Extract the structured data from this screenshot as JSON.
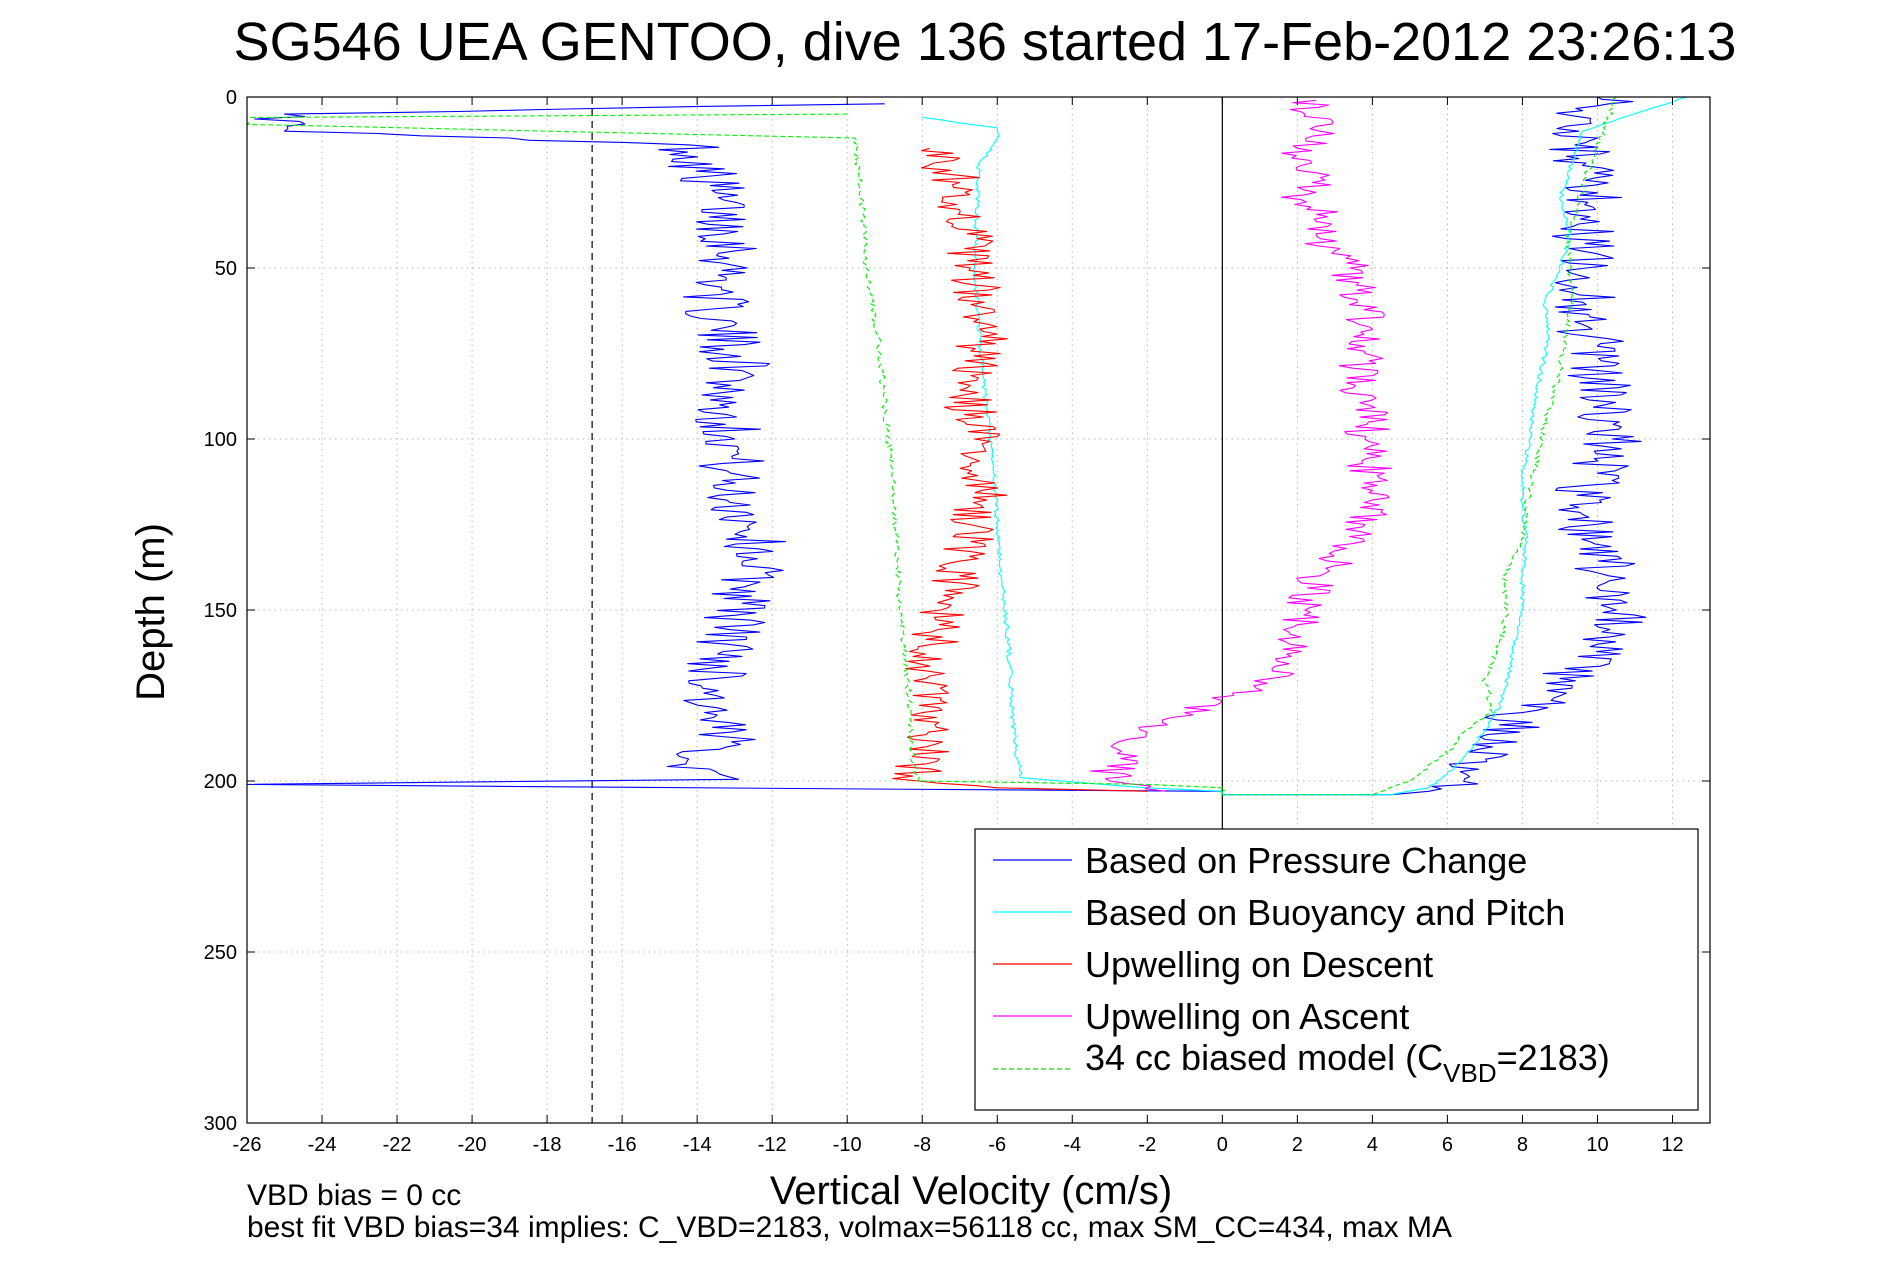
{
  "chart_data": {
    "type": "line",
    "title": "SG546 UEA GENTOO, dive 136 started 17-Feb-2012 23:26:13",
    "xlabel": "Vertical Velocity (cm/s)",
    "ylabel": "Depth (m)",
    "xlim": [
      -26,
      13.0
    ],
    "ylim": [
      0,
      300
    ],
    "y_reversed": true,
    "grid": true,
    "legend_position": "bottom-right",
    "x_ticks": [
      -26,
      -24,
      -22,
      -20,
      -18,
      -16,
      -14,
      -12,
      -10,
      -8,
      -6,
      -4,
      -2,
      0,
      2,
      4,
      6,
      8,
      10,
      12
    ],
    "y_ticks": [
      0,
      50,
      100,
      150,
      200,
      250,
      300
    ],
    "reference_lines": [
      {
        "x": -16.8,
        "style": "dashed",
        "color": "#000000"
      },
      {
        "x": 0,
        "style": "solid",
        "color": "#000000",
        "y_range": [
          0,
          215
        ]
      }
    ],
    "series": [
      {
        "name": "Based on Pressure Change",
        "color": "#0000ff",
        "noise": 0.9,
        "x": [
          -9,
          -25,
          -25,
          -14.2,
          -13.5,
          -13,
          -13.6,
          -12.8,
          -13.4,
          -13,
          -13.2,
          -12.6,
          -12.4,
          -12.8,
          -13.2,
          -13.5,
          -13.8,
          -13.2,
          -14.3,
          -13.4,
          -12.9,
          -26,
          0,
          0,
          4.5,
          5.5,
          6.5,
          7.2,
          8,
          9,
          10,
          10.5,
          10.3,
          9.8,
          9.5,
          10,
          10.4,
          10.2,
          10,
          9.8,
          9.6,
          9.7,
          9.5,
          9.8,
          10,
          9.6,
          9.4,
          9.5,
          9.8,
          9.6,
          10.3,
          10
        ],
        "y": [
          2,
          5,
          10,
          14,
          28,
          45,
          62,
          80,
          90,
          100,
          115,
          125,
          135,
          148,
          160,
          170,
          180,
          190,
          195,
          198,
          199.5,
          201,
          203,
          204,
          204,
          203,
          198,
          190,
          180,
          170,
          160,
          150,
          140,
          130,
          120,
          110,
          100,
          90,
          80,
          70,
          60,
          50,
          40,
          35,
          28,
          20,
          14,
          10,
          7,
          4,
          2,
          0
        ]
      },
      {
        "name": "Based on Buoyancy and Pitch",
        "color": "#00ffff",
        "noise": 0.06,
        "x": [
          -8,
          -6,
          -6,
          -6.5,
          -6.6,
          -6.4,
          -6.1,
          -5.9,
          -5.7,
          -5.6,
          -5.5,
          -5.4,
          -5.4,
          -2,
          0,
          0,
          4.5,
          5.5,
          6,
          6.5,
          7,
          7.4,
          7.6,
          7.8,
          8,
          8,
          8.1,
          8,
          8,
          8.2,
          8.3,
          8.5,
          8.7,
          8.6,
          9,
          9.3,
          9,
          9.6,
          12.4
        ],
        "y": [
          6,
          9,
          12,
          20,
          50,
          80,
          110,
          140,
          160,
          180,
          193,
          197,
          199,
          202,
          203,
          204,
          204,
          202,
          198,
          192,
          185,
          178,
          170,
          160,
          150,
          140,
          130,
          120,
          110,
          100,
          90,
          80,
          70,
          60,
          50,
          40,
          30,
          10,
          0
        ]
      },
      {
        "name": "Upwelling on Descent",
        "color": "#ff0000",
        "noise": 0.7,
        "x": [
          -7.8,
          -7,
          -6.8,
          -6.6,
          -6.4,
          -6.8,
          -6.6,
          -6.4,
          -6.7,
          -7,
          -7.5,
          -7.7,
          -7.9,
          -8,
          -7.9,
          -8.1,
          -6,
          -2
        ],
        "y": [
          15,
          25,
          40,
          55,
          70,
          85,
          100,
          115,
          130,
          140,
          150,
          160,
          170,
          180,
          190,
          200,
          202,
          203
        ]
      },
      {
        "name": "Upwelling on Ascent",
        "color": "#ff00ff",
        "noise": 0.6,
        "x": [
          -1.5,
          -3,
          -2.8,
          -2.2,
          -1,
          0.3,
          1.3,
          1.8,
          2.2,
          2.6,
          3.3,
          3.8,
          4,
          3.8,
          3.9,
          4.1,
          3.5,
          3.8,
          4,
          3.6,
          3.4,
          3,
          2.5,
          2.8,
          2.1,
          2.4,
          2.1,
          2,
          2.6,
          2.2,
          2.5
        ],
        "y": [
          203,
          200,
          192,
          185,
          180,
          175,
          170,
          160,
          150,
          140,
          132,
          125,
          115,
          100,
          95,
          88,
          85,
          75,
          68,
          60,
          50,
          45,
          40,
          35,
          30,
          25,
          20,
          15,
          10,
          5,
          1
        ]
      },
      {
        "name": "34 cc biased model (C",
        "name_subscript": "VBD",
        "name_suffix": "=2183)",
        "color": "#00ee00",
        "dashed": true,
        "noise": 0.08,
        "x": [
          -10,
          -26,
          -26,
          -9.8,
          -9.6,
          -9.5,
          -9.2,
          -9,
          -8.8,
          -8.7,
          -8.6,
          -8.5,
          -8.4,
          -8.3,
          -8.3,
          -8.2,
          -8.1,
          -2,
          0,
          0,
          4,
          5,
          6.2,
          6.5,
          7.2,
          7,
          7.4,
          7.6,
          7.5,
          8,
          8.1,
          8.3,
          8.5,
          9,
          9.3,
          9.2,
          9.8,
          10.5
        ],
        "y": [
          5,
          6,
          8,
          12,
          30,
          50,
          70,
          90,
          110,
          130,
          150,
          160,
          170,
          180,
          190,
          195,
          200,
          201,
          202,
          204,
          204,
          200,
          190,
          185,
          180,
          170,
          160,
          150,
          140,
          130,
          120,
          110,
          100,
          80,
          60,
          40,
          20,
          0
        ]
      }
    ],
    "annotations": [
      "VBD bias = 0 cc",
      "best fit VBD bias=34 implies: C_VBD=2183, volmax=56118 cc, max SM_CC=434, max MA"
    ]
  }
}
